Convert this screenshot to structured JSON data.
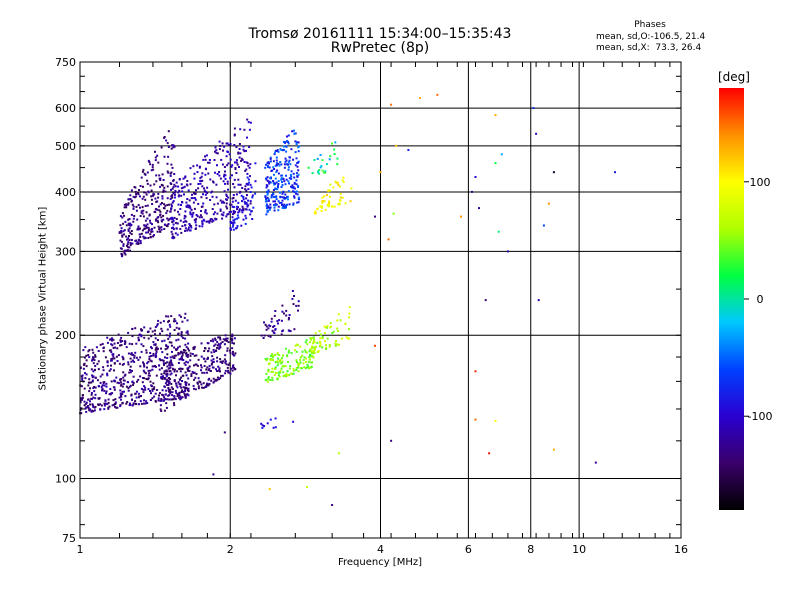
{
  "chart_data": {
    "type": "scatter",
    "title": "Tromsø 20161111 15:34:00–15:35:43",
    "subtitle": "RwPretec (8p)",
    "xlabel": "Frequency [MHz]",
    "ylabel": "Stationary phase Virtual Height [km]",
    "x_scale": "log",
    "y_scale": "log",
    "xlim": [
      1,
      16
    ],
    "ylim": [
      75,
      750
    ],
    "x_ticks": [
      1,
      2,
      4,
      6,
      8,
      10,
      16
    ],
    "y_ticks": [
      75,
      100,
      200,
      300,
      400,
      500,
      600,
      750
    ],
    "x_gridlines": [
      2,
      4,
      6,
      8,
      10
    ],
    "y_gridlines": [
      100,
      200,
      300,
      400,
      500,
      600
    ],
    "phases": {
      "header": "Phases",
      "o_line": "mean, sd,O:-106.5, 21.4",
      "x_line": "mean, sd,X:  73.3, 26.4"
    },
    "colorbar": {
      "label": "[deg]",
      "min": -180,
      "max": 180,
      "ticks": [
        -100,
        0,
        100
      ],
      "colors": [
        "#000000",
        "#3a006a",
        "#2a00d0",
        "#0040ff",
        "#00c8ff",
        "#00ff40",
        "#b0ff00",
        "#ffff00",
        "#ff9000",
        "#ff0000"
      ]
    },
    "clusters": [
      {
        "fmin": 1.0,
        "fmax": 1.65,
        "hlo": [
          137,
          148
        ],
        "hhi": [
          188,
          228
        ],
        "phase": [
          -150,
          -110
        ],
        "n": 650
      },
      {
        "fmin": 1.45,
        "fmax": 2.05,
        "hlo": [
          137,
          168
        ],
        "hhi": [
          178,
          205
        ],
        "phase": [
          -150,
          -115
        ],
        "n": 300
      },
      {
        "fmin": 1.2,
        "fmax": 1.55,
        "hlo": [
          288,
          345
        ],
        "hhi": [
          360,
          560
        ],
        "phase": [
          -150,
          -115
        ],
        "n": 320
      },
      {
        "fmin": 1.52,
        "fmax": 2.2,
        "hlo": [
          318,
          370
        ],
        "hhi": [
          410,
          580
        ],
        "phase": [
          -135,
          -95
        ],
        "n": 380
      },
      {
        "fmin": 2.0,
        "fmax": 2.25,
        "hlo": [
          330,
          350
        ],
        "hhi": [
          360,
          480
        ],
        "phase": [
          -110,
          -70
        ],
        "n": 60
      },
      {
        "fmin": 2.35,
        "fmax": 2.75,
        "hlo": [
          358,
          378
        ],
        "hhi": [
          460,
          560
        ],
        "phase": [
          -100,
          -40
        ],
        "n": 260
      },
      {
        "fmin": 2.35,
        "fmax": 2.95,
        "hlo": [
          158,
          172
        ],
        "hhi": [
          180,
          200
        ],
        "phase": [
          30,
          70
        ],
        "n": 160
      },
      {
        "fmin": 2.3,
        "fmax": 2.75,
        "hlo": [
          195,
          205
        ],
        "hhi": [
          215,
          255
        ],
        "phase": [
          -145,
          -105
        ],
        "n": 50
      },
      {
        "fmin": 2.9,
        "fmax": 3.5,
        "hlo": [
          182,
          195
        ],
        "hhi": [
          200,
          232
        ],
        "phase": [
          40,
          90
        ],
        "n": 70
      },
      {
        "fmin": 2.95,
        "fmax": 3.5,
        "hlo": [
          360,
          380
        ],
        "hhi": [
          390,
          450
        ],
        "phase": [
          80,
          125
        ],
        "n": 55
      },
      {
        "fmin": 2.8,
        "fmax": 3.3,
        "hlo": [
          420,
          450
        ],
        "hhi": [
          460,
          520
        ],
        "phase": [
          -40,
          40
        ],
        "n": 25
      },
      {
        "fmin": 2.3,
        "fmax": 2.7,
        "hlo": [
          125,
          132
        ],
        "hhi": [
          132,
          138
        ],
        "phase": [
          -110,
          -80
        ],
        "n": 10
      }
    ],
    "scattered_points": [
      {
        "f": 4.2,
        "h": 610,
        "phase": 150
      },
      {
        "f": 4.3,
        "h": 500,
        "phase": 120
      },
      {
        "f": 4.55,
        "h": 490,
        "phase": -80
      },
      {
        "f": 4.0,
        "h": 440,
        "phase": 130
      },
      {
        "f": 3.9,
        "h": 355,
        "phase": -130
      },
      {
        "f": 4.25,
        "h": 360,
        "phase": 50
      },
      {
        "f": 4.15,
        "h": 318,
        "phase": 150
      },
      {
        "f": 3.9,
        "h": 190,
        "phase": 160
      },
      {
        "f": 4.2,
        "h": 120,
        "phase": -130
      },
      {
        "f": 5.2,
        "h": 640,
        "phase": 150
      },
      {
        "f": 4.8,
        "h": 630,
        "phase": 130
      },
      {
        "f": 5.8,
        "h": 355,
        "phase": 140
      },
      {
        "f": 6.2,
        "h": 430,
        "phase": -100
      },
      {
        "f": 6.3,
        "h": 370,
        "phase": -120
      },
      {
        "f": 6.2,
        "h": 168,
        "phase": 170
      },
      {
        "f": 6.2,
        "h": 133,
        "phase": 150
      },
      {
        "f": 6.5,
        "h": 237,
        "phase": -140
      },
      {
        "f": 6.6,
        "h": 113,
        "phase": 175
      },
      {
        "f": 6.8,
        "h": 580,
        "phase": 130
      },
      {
        "f": 6.8,
        "h": 460,
        "phase": 20
      },
      {
        "f": 7.0,
        "h": 480,
        "phase": -30
      },
      {
        "f": 7.2,
        "h": 300,
        "phase": -110
      },
      {
        "f": 6.8,
        "h": 132,
        "phase": 100
      },
      {
        "f": 6.9,
        "h": 330,
        "phase": 10
      },
      {
        "f": 8.1,
        "h": 600,
        "phase": -70
      },
      {
        "f": 8.2,
        "h": 530,
        "phase": -100
      },
      {
        "f": 8.5,
        "h": 340,
        "phase": -60
      },
      {
        "f": 8.9,
        "h": 440,
        "phase": -170
      },
      {
        "f": 8.7,
        "h": 378,
        "phase": 140
      },
      {
        "f": 8.3,
        "h": 237,
        "phase": -110
      },
      {
        "f": 8.9,
        "h": 115,
        "phase": 130
      },
      {
        "f": 10.8,
        "h": 108,
        "phase": -120
      },
      {
        "f": 11.8,
        "h": 440,
        "phase": -85
      },
      {
        "f": 6.1,
        "h": 400,
        "phase": -120
      },
      {
        "f": 2.85,
        "h": 96,
        "phase": 70
      },
      {
        "f": 3.2,
        "h": 88,
        "phase": -130
      },
      {
        "f": 2.4,
        "h": 95,
        "phase": 120
      },
      {
        "f": 3.3,
        "h": 113,
        "phase": 60
      },
      {
        "f": 1.95,
        "h": 125,
        "phase": -130
      },
      {
        "f": 1.85,
        "h": 102,
        "phase": -130
      }
    ]
  }
}
